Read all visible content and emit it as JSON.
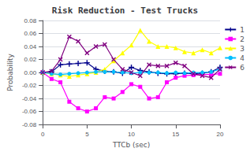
{
  "chart_data": {
    "type": "line",
    "title": "Risk Reduction - Test Trucks",
    "x_label": "TTCb (sec)",
    "y_label": "Probability",
    "x": [
      0,
      1,
      2,
      3,
      4,
      5,
      6,
      7,
      8,
      9,
      10,
      11,
      12,
      13,
      14,
      15,
      16,
      17,
      18,
      19,
      20
    ],
    "series": [
      {
        "name": "1",
        "color": "#00008b",
        "marker": "plus",
        "values": [
          0,
          0.001,
          0.012,
          0.013,
          0.014,
          0.015,
          0.005,
          0.002,
          0.001,
          -0.001,
          0.008,
          0.003,
          0.001,
          -0.001,
          -0.002,
          -0.002,
          -0.001,
          -0.002,
          -0.001,
          0.001,
          0.008
        ]
      },
      {
        "name": "2",
        "color": "#ff00ff",
        "marker": "square",
        "values": [
          0,
          -0.01,
          -0.015,
          -0.045,
          -0.055,
          -0.06,
          -0.055,
          -0.038,
          -0.04,
          -0.03,
          -0.018,
          -0.022,
          -0.04,
          -0.038,
          -0.015,
          -0.008,
          -0.005,
          -0.004,
          -0.003,
          -0.003,
          -0.002
        ]
      },
      {
        "name": "3",
        "color": "#ffff00",
        "marker": "triangle",
        "values": [
          0,
          -0.002,
          -0.004,
          -0.006,
          -0.004,
          -0.002,
          0.0,
          0.005,
          0.018,
          0.03,
          0.042,
          0.065,
          0.048,
          0.04,
          0.04,
          0.038,
          0.032,
          0.03,
          0.035,
          0.03,
          0.038
        ]
      },
      {
        "name": "4",
        "color": "#00bfff",
        "marker": "circle",
        "values": [
          0,
          -0.002,
          -0.003,
          -0.002,
          -0.001,
          0.0,
          0.001,
          0.001,
          0.001,
          0.0,
          -0.001,
          0.0,
          0.0,
          0.0,
          -0.001,
          0.0,
          -0.001,
          0.0,
          0.0,
          0.001,
          0.005
        ]
      },
      {
        "name": "6",
        "color": "#800080",
        "marker": "cross",
        "values": [
          0,
          0.002,
          0.02,
          0.055,
          0.048,
          0.03,
          0.04,
          0.043,
          0.02,
          0.005,
          0.0,
          -0.005,
          0.012,
          0.01,
          0.01,
          0.015,
          0.01,
          -0.002,
          -0.005,
          -0.008,
          0.005
        ]
      }
    ],
    "xlim": [
      0,
      20
    ],
    "xticks": [
      0,
      5,
      10,
      15,
      20
    ],
    "ylim": [
      -0.08,
      0.08
    ],
    "yticks": [
      -0.08,
      -0.06,
      -0.04,
      -0.02,
      {
        "value": 0,
        "label": "0.00"
      },
      0.02,
      0.04,
      0.06,
      0.08
    ],
    "grid": "y",
    "legend": "upper right"
  }
}
